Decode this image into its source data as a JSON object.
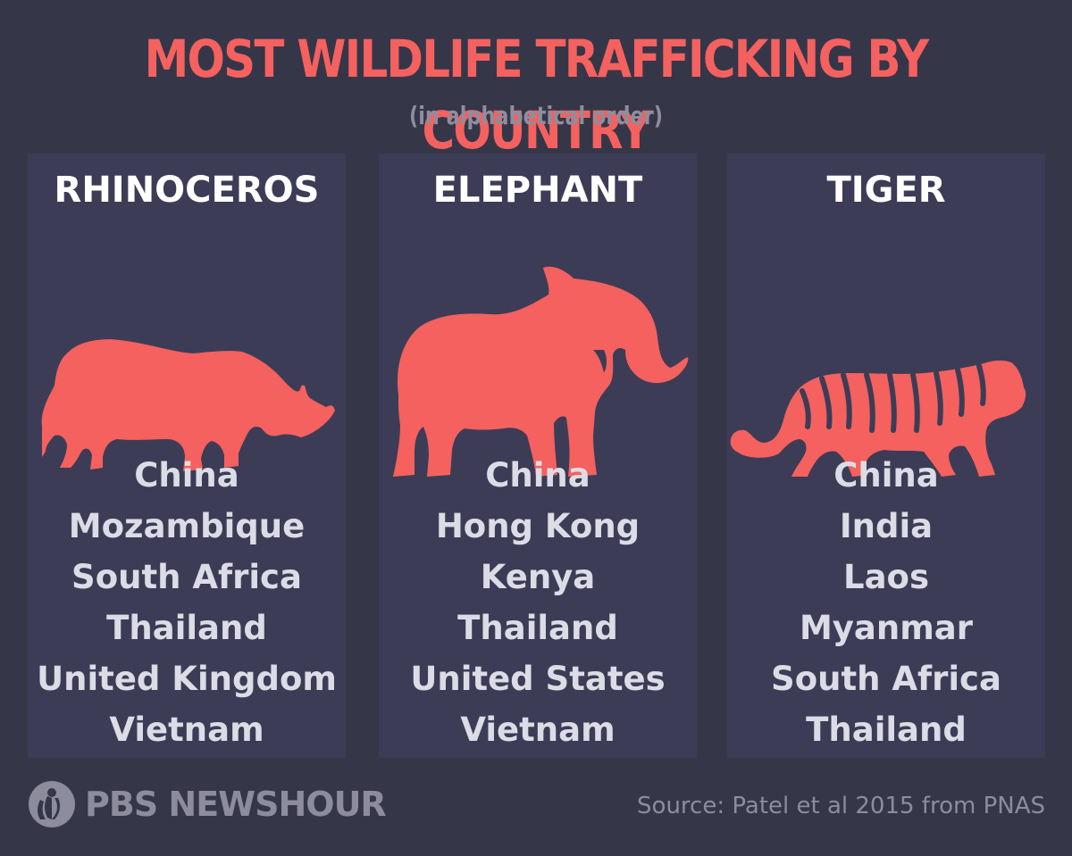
{
  "title": "MOST WILDLIFE TRAFFICKING BY COUNTRY",
  "subtitle": "(in alphabetical order)",
  "accent_color": "#f4615f",
  "panels": [
    {
      "title": "RHINOCEROS",
      "icon": "rhinoceros-icon",
      "countries": [
        "China",
        "Mozambique",
        "South Africa",
        "Thailand",
        "United Kingdom",
        "Vietnam"
      ]
    },
    {
      "title": "ELEPHANT",
      "icon": "elephant-icon",
      "countries": [
        "China",
        "Hong Kong",
        "Kenya",
        "Thailand",
        "United States",
        "Vietnam"
      ]
    },
    {
      "title": "TIGER",
      "icon": "tiger-icon",
      "countries": [
        "China",
        "India",
        "Laos",
        "Myanmar",
        "South Africa",
        "Thailand"
      ]
    }
  ],
  "footer": {
    "logo_text": "PBS NEWSHOUR",
    "source": "Source: Patel et al 2015 from PNAS"
  }
}
